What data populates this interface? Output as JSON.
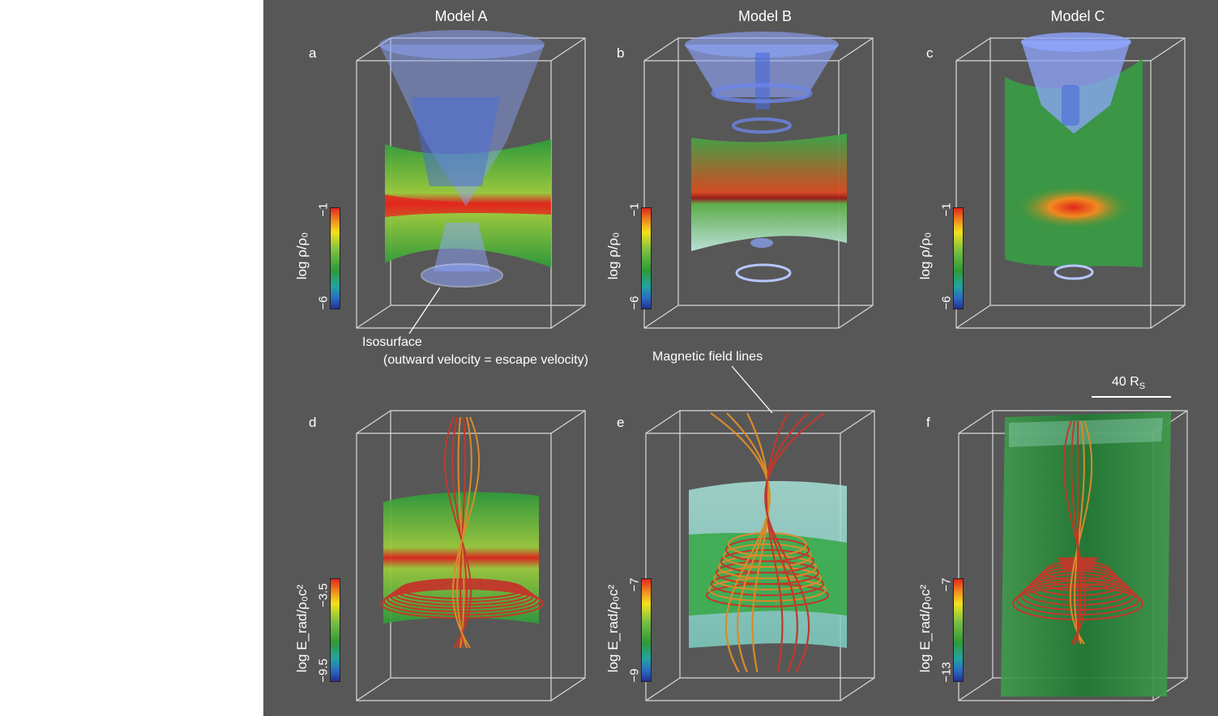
{
  "columns": [
    {
      "title": "Model A"
    },
    {
      "title": "Model B"
    },
    {
      "title": "Model C"
    }
  ],
  "panels": [
    {
      "letter": "a",
      "colorbar": {
        "label": "log ρ/ρ₀",
        "max": "−1",
        "min": "−6"
      }
    },
    {
      "letter": "b",
      "colorbar": {
        "label": "log ρ/ρ₀",
        "max": "−1",
        "min": "−6"
      }
    },
    {
      "letter": "c",
      "colorbar": {
        "label": "log ρ/ρ₀",
        "max": "−1",
        "min": "−6"
      }
    },
    {
      "letter": "d",
      "colorbar": {
        "label": "log E_rad/ρ₀c²",
        "max": "−3.5",
        "min": "−9.5"
      }
    },
    {
      "letter": "e",
      "colorbar": {
        "label": "log E_rad/ρ₀c²",
        "max": "−7",
        "min": "−9"
      }
    },
    {
      "letter": "f",
      "colorbar": {
        "label": "log E_rad/ρ₀c²",
        "max": "−7",
        "min": "−13"
      }
    }
  ],
  "annotations": {
    "isosurface_line1": "Isosurface",
    "isosurface_line2": "(outward velocity = escape velocity)",
    "magnetic_field_lines": "Magnetic field lines",
    "scale_bar": "40 R",
    "scale_bar_sub": "S"
  },
  "colors": {
    "background": "#575757",
    "isosurface": "#8fa6ff",
    "field_lines": "#c0392b",
    "box_edges": "#d9d9d9"
  }
}
